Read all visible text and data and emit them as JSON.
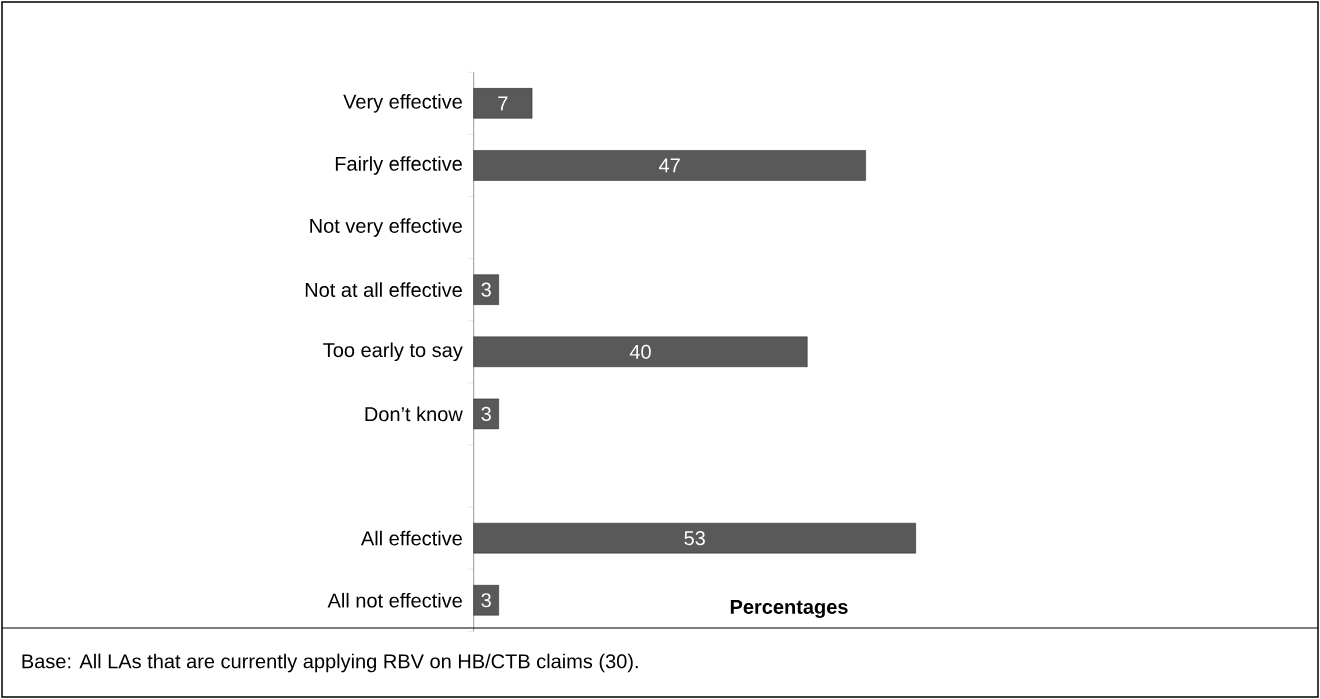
{
  "chart_data": {
    "type": "bar",
    "orientation": "horizontal",
    "xlabel": "Percentages",
    "categories": [
      "Very effective",
      "Fairly effective",
      "Not very effective",
      "Not at all effective",
      "Too early to say",
      "Don’t know",
      null,
      "All effective",
      "All not effective"
    ],
    "values": [
      7,
      47,
      null,
      3,
      40,
      3,
      null,
      53,
      3
    ],
    "color": "#595959",
    "data_labels": true,
    "annotations": [
      "Base: All LAs that are currently applying RBV on HB/CTB claims (30)."
    ]
  }
}
